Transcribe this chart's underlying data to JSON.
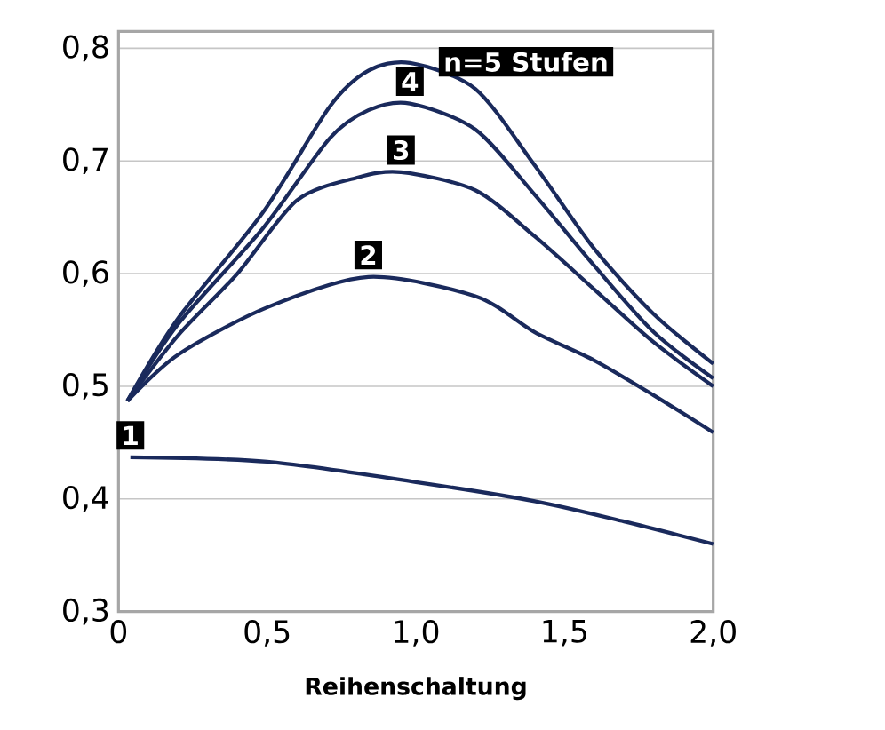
{
  "chart_data": {
    "type": "line",
    "xlabel": "Reihenschaltung",
    "xlim": [
      0,
      2.0
    ],
    "ylim": [
      0.3,
      0.815
    ],
    "xticks": [
      0,
      {
        "value": 0.5,
        "label": "0,5"
      },
      {
        "value": 1.0,
        "label": "1,0"
      },
      {
        "value": 1.5,
        "label": "1,5"
      },
      {
        "value": 2.0,
        "label": "2,0"
      }
    ],
    "yticks": [
      {
        "value": 0.3,
        "label": "0,3"
      },
      {
        "value": 0.4,
        "label": "0,4"
      },
      {
        "value": 0.5,
        "label": "0,5"
      },
      {
        "value": 0.6,
        "label": "0,6"
      },
      {
        "value": 0.7,
        "label": "0,7"
      },
      {
        "value": 0.8,
        "label": "0,8"
      }
    ],
    "grid": "y",
    "legend": false,
    "marker": "none",
    "line_style": "solid",
    "series": [
      {
        "name": "1",
        "color": "#1a2a5c",
        "x": [
          0.04,
          0.5,
          1.0,
          1.4,
          1.7,
          2.0
        ],
        "values": [
          0.437,
          0.433,
          0.415,
          0.398,
          0.38,
          0.36
        ]
      },
      {
        "name": "2",
        "color": "#1a2a5c",
        "x": [
          0.03,
          0.2,
          0.5,
          0.84,
          1.2,
          1.4,
          1.6,
          1.8,
          2.0
        ],
        "values": [
          0.487,
          0.528,
          0.57,
          0.597,
          0.58,
          0.548,
          0.523,
          0.492,
          0.459
        ]
      },
      {
        "name": "3",
        "color": "#1a2a5c",
        "x": [
          0.03,
          0.2,
          0.4,
          0.6,
          0.8,
          0.95,
          1.2,
          1.4,
          1.6,
          1.8,
          2.0
        ],
        "values": [
          0.487,
          0.545,
          0.6,
          0.665,
          0.685,
          0.69,
          0.674,
          0.633,
          0.586,
          0.539,
          0.5
        ]
      },
      {
        "name": "4",
        "color": "#1a2a5c",
        "x": [
          0.03,
          0.2,
          0.485,
          0.71,
          0.84,
          0.98,
          1.2,
          1.4,
          1.6,
          1.8,
          2.0
        ],
        "values": [
          0.487,
          0.555,
          0.64,
          0.72,
          0.745,
          0.751,
          0.728,
          0.67,
          0.607,
          0.548,
          0.507
        ]
      },
      {
        "name": "n=5 Stufen",
        "color": "#1a2a5c",
        "x": [
          0.03,
          0.2,
          0.485,
          0.71,
          0.84,
          0.98,
          1.2,
          1.4,
          1.6,
          1.8,
          2.0
        ],
        "values": [
          0.487,
          0.56,
          0.654,
          0.748,
          0.78,
          0.787,
          0.764,
          0.696,
          0.622,
          0.564,
          0.52
        ]
      }
    ]
  }
}
